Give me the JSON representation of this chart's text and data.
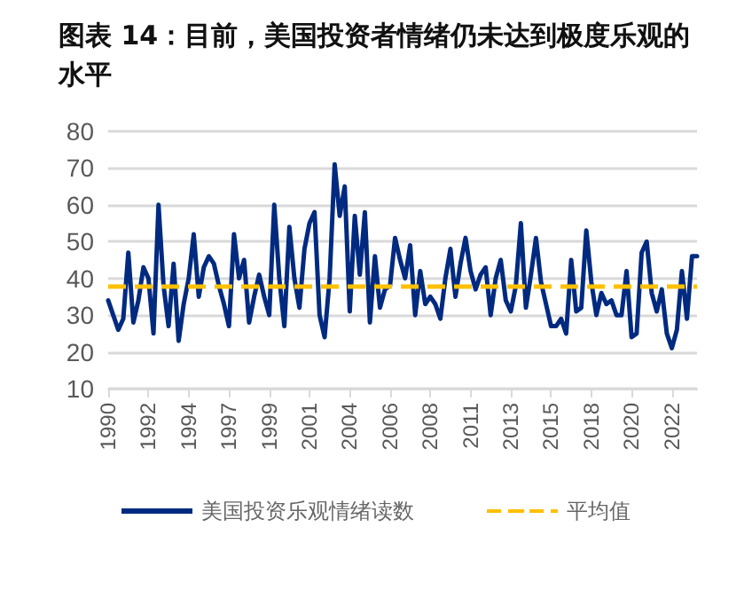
{
  "chart_data": {
    "type": "line",
    "title": "图表 14：目前，美国投资者情绪仍未达到极度乐观的水平",
    "categories": [
      "1990",
      null,
      null,
      null,
      null,
      null,
      null,
      null,
      "1992",
      null,
      null,
      null,
      null,
      null,
      null,
      null,
      "1994",
      null,
      null,
      null,
      null,
      null,
      null,
      null,
      "1997",
      null,
      null,
      null,
      null,
      null,
      null,
      null,
      "1999",
      null,
      null,
      null,
      null,
      null,
      null,
      null,
      "2001",
      null,
      null,
      null,
      null,
      null,
      null,
      null,
      "2004",
      null,
      null,
      null,
      null,
      null,
      null,
      null,
      "2006",
      null,
      null,
      null,
      null,
      null,
      null,
      null,
      "2008",
      null,
      null,
      null,
      null,
      null,
      null,
      null,
      "2011",
      null,
      null,
      null,
      null,
      null,
      null,
      null,
      "2013",
      null,
      null,
      null,
      null,
      null,
      null,
      null,
      "2015",
      null,
      null,
      null,
      null,
      null,
      null,
      null,
      "2018",
      null,
      null,
      null,
      null,
      null,
      null,
      null,
      "2020",
      null,
      null,
      null,
      null,
      null,
      null,
      null,
      "2022",
      null,
      null,
      null,
      null,
      null
    ],
    "series": [
      {
        "name": "美国投资乐观情绪读数",
        "color": "#002a80",
        "values": [
          34,
          30,
          26,
          29,
          47,
          28,
          34,
          43,
          40,
          25,
          60,
          38,
          27,
          44,
          23,
          33,
          40,
          52,
          35,
          43,
          46,
          44,
          38,
          33,
          27,
          52,
          40,
          45,
          28,
          35,
          41,
          35,
          30,
          60,
          40,
          27,
          54,
          40,
          32,
          48,
          55,
          58,
          30,
          24,
          40,
          71,
          57,
          65,
          31,
          57,
          41,
          58,
          28,
          46,
          32,
          37,
          38,
          51,
          45,
          40,
          49,
          30,
          42,
          33,
          35,
          33,
          29,
          40,
          48,
          35,
          44,
          51,
          42,
          37,
          41,
          43,
          30,
          40,
          45,
          34,
          31,
          38,
          55,
          32,
          41,
          51,
          39,
          33,
          27,
          27,
          29,
          25,
          45,
          31,
          32,
          53,
          39,
          30,
          36,
          33,
          34,
          30,
          30,
          42,
          24,
          25,
          47,
          50,
          36,
          31,
          37,
          25,
          21,
          26,
          42,
          29,
          46,
          46
        ]
      }
    ],
    "ref_lines": [
      {
        "axis": "y",
        "value": 38,
        "label": "平均值",
        "color": "#ffc000",
        "line_style": "dashed"
      }
    ],
    "ylim": [
      10,
      80
    ],
    "yticks": [
      10,
      20,
      30,
      40,
      50,
      60,
      70,
      80
    ],
    "grid": "y",
    "legend": "bottom",
    "marker": "none",
    "line_style": "solid"
  }
}
